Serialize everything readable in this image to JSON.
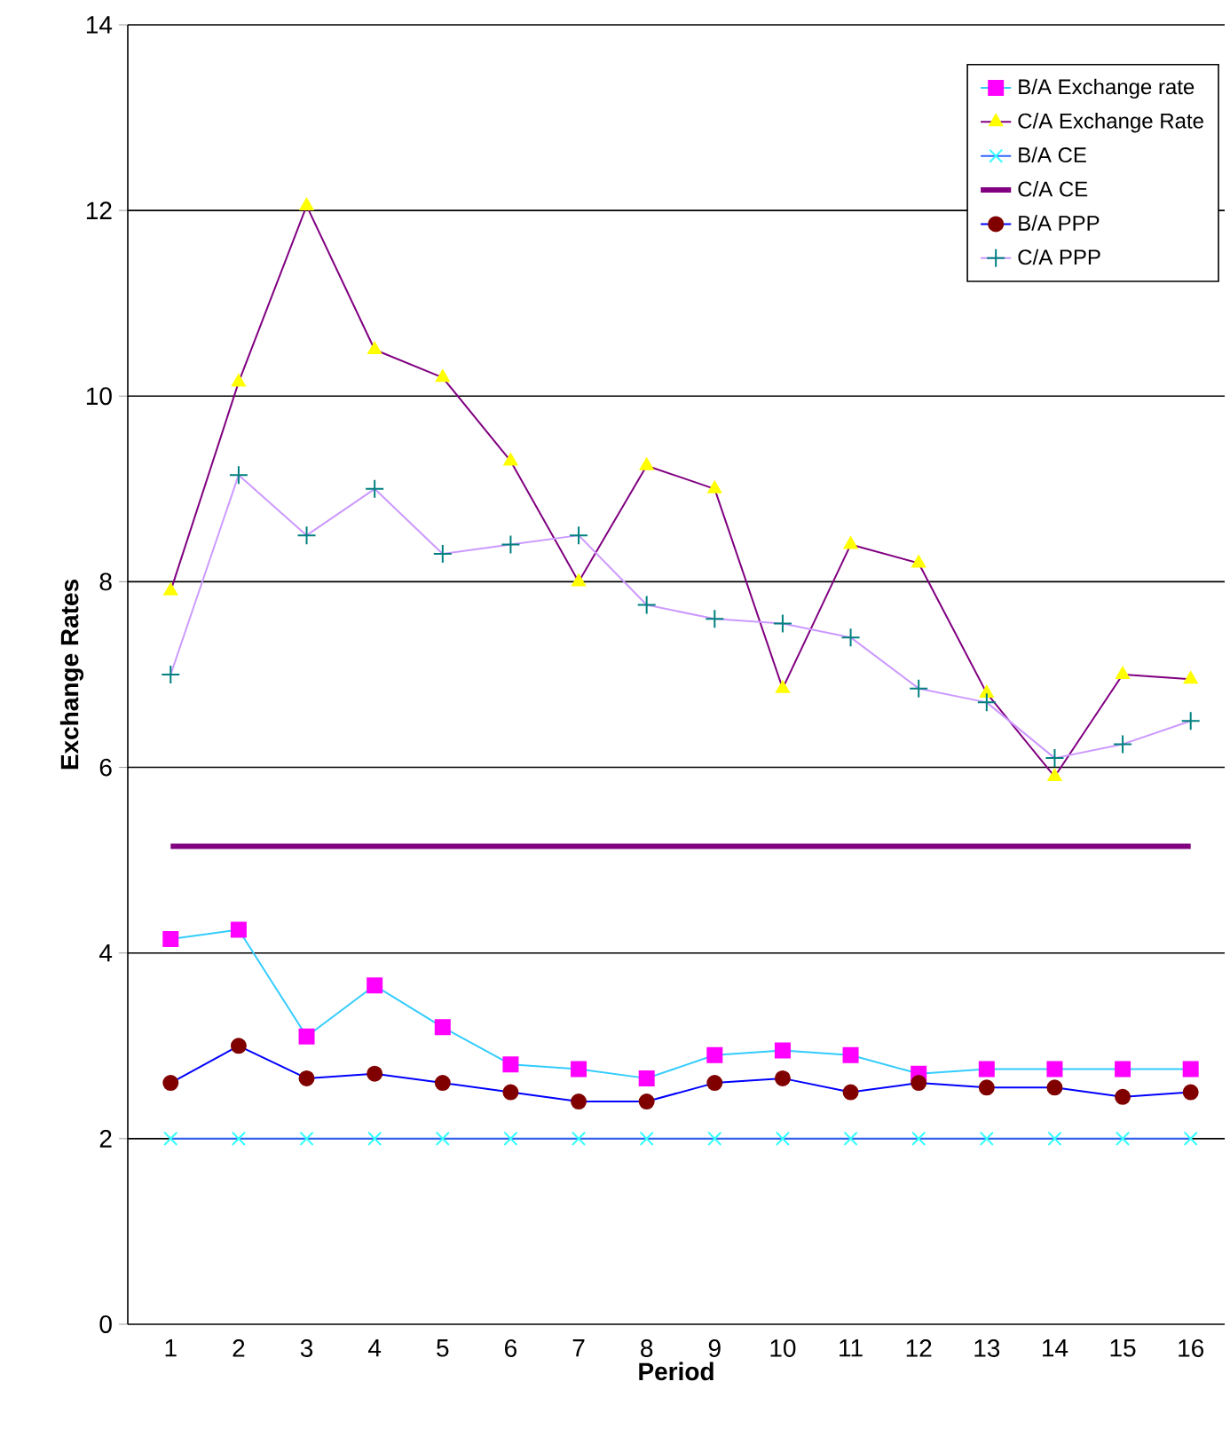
{
  "chart_data": {
    "type": "line",
    "xlabel": "Period",
    "ylabel": "Exchange Rates",
    "categories": [
      "1",
      "2",
      "3",
      "4",
      "5",
      "6",
      "7",
      "8",
      "9",
      "10",
      "11",
      "12",
      "13",
      "14",
      "15",
      "16"
    ],
    "ylim": [
      0,
      14
    ],
    "yticks": [
      0,
      2,
      4,
      6,
      8,
      10,
      12,
      14
    ],
    "grid": "y",
    "legend": "top right",
    "series": [
      {
        "name": "B/A Exchange rate",
        "color": "#33ccff",
        "marker": "square",
        "colors": [
          "#ff00ff",
          "#ff00ff",
          "#ff00ff",
          "#ff00ff",
          "#ff00ff",
          "#ff00ff",
          "#ff00ff",
          "#ff00ff",
          "#ff00ff",
          "#ff00ff",
          "#ff00ff",
          "#ff00ff",
          "#ff00ff",
          "#ff00ff",
          "#ff00ff",
          "#ff00ff"
        ],
        "values": [
          4.15,
          4.25,
          3.1,
          3.65,
          3.2,
          2.8,
          2.75,
          2.65,
          2.9,
          2.95,
          2.9,
          2.7,
          2.75,
          2.75,
          2.75,
          2.75
        ]
      },
      {
        "name": "C/A Exchange Rate",
        "color": "#800080",
        "marker": "triangle",
        "colors": [
          "#ffff00",
          "#ffff00",
          "#ffff00",
          "#ffff00",
          "#ffff00",
          "#ffff00",
          "#ffff00",
          "#ffff00",
          "#ffff00",
          "#ffff00",
          "#ffff00",
          "#ffff00",
          "#ffff00",
          "#ffff00",
          "#ffff00",
          "#ffff00"
        ],
        "values": [
          7.9,
          10.15,
          12.05,
          10.5,
          10.2,
          9.3,
          8.0,
          9.25,
          9.0,
          6.85,
          8.4,
          8.2,
          6.8,
          5.9,
          7.0,
          6.95
        ]
      },
      {
        "name": "B/A CE",
        "color": "#3366ff",
        "marker": "cross",
        "colors": [
          "#33ffff",
          "#33ffff",
          "#33ffff",
          "#33ffff",
          "#33ffff",
          "#33ffff",
          "#33ffff",
          "#33ffff",
          "#33ffff",
          "#33ffff",
          "#33ffff",
          "#33ffff",
          "#33ffff",
          "#33ffff",
          "#33ffff",
          "#33ffff"
        ],
        "values": [
          2,
          2,
          2,
          2,
          2,
          2,
          2,
          2,
          2,
          2,
          2,
          2,
          2,
          2,
          2,
          2
        ]
      },
      {
        "name": "C/A CE",
        "color": "#800080",
        "marker": "none",
        "values": [
          5.15,
          5.15,
          5.15,
          5.15,
          5.15,
          5.15,
          5.15,
          5.15,
          5.15,
          5.15,
          5.15,
          5.15,
          5.15,
          5.15,
          5.15,
          5.15
        ]
      },
      {
        "name": "B/A PPP",
        "color": "#0000ff",
        "marker": "circle",
        "colors": [
          "#800000",
          "#800000",
          "#800000",
          "#800000",
          "#800000",
          "#800000",
          "#800000",
          "#800000",
          "#800000",
          "#800000",
          "#800000",
          "#800000",
          "#800000",
          "#800000",
          "#800000",
          "#800000"
        ],
        "values": [
          2.6,
          3.0,
          2.65,
          2.7,
          2.6,
          2.5,
          2.4,
          2.4,
          2.6,
          2.65,
          2.5,
          2.6,
          2.55,
          2.55,
          2.45,
          2.5
        ]
      },
      {
        "name": "C/A PPP",
        "color": "#cc99ff",
        "marker": "plus",
        "colors": [
          "#008080",
          "#008080",
          "#008080",
          "#008080",
          "#008080",
          "#008080",
          "#008080",
          "#008080",
          "#008080",
          "#008080",
          "#008080",
          "#008080",
          "#008080",
          "#008080",
          "#008080",
          "#008080"
        ],
        "values": [
          7.0,
          9.15,
          8.5,
          9.0,
          8.3,
          8.4,
          8.5,
          7.75,
          7.6,
          7.55,
          7.4,
          6.85,
          6.7,
          6.1,
          6.25,
          6.5
        ]
      }
    ]
  }
}
